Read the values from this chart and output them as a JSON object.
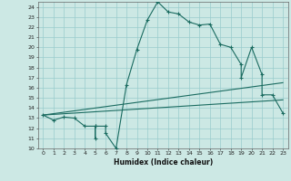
{
  "xlabel": "Humidex (Indice chaleur)",
  "xlim": [
    -0.5,
    23.5
  ],
  "ylim": [
    10,
    24.5
  ],
  "yticks": [
    10,
    11,
    12,
    13,
    14,
    15,
    16,
    17,
    18,
    19,
    20,
    21,
    22,
    23,
    24
  ],
  "xticks": [
    0,
    1,
    2,
    3,
    4,
    5,
    6,
    7,
    8,
    9,
    10,
    11,
    12,
    13,
    14,
    15,
    16,
    17,
    18,
    19,
    20,
    21,
    22,
    23
  ],
  "bg_color": "#cce8e4",
  "grid_color": "#99cccc",
  "line_color": "#1a6b60",
  "curve1_x": [
    0,
    1,
    2,
    3,
    4,
    5,
    5,
    5,
    6,
    6,
    7,
    8,
    9,
    10,
    11,
    12,
    13,
    14,
    15,
    16,
    17,
    18,
    19,
    19,
    20,
    21,
    21,
    22,
    23
  ],
  "curve1_y": [
    13.3,
    12.8,
    13.1,
    13.0,
    12.2,
    12.2,
    11.0,
    12.2,
    12.2,
    11.5,
    10.0,
    16.3,
    19.8,
    22.7,
    24.5,
    23.5,
    23.3,
    22.5,
    22.2,
    22.3,
    20.3,
    20.0,
    18.3,
    17.0,
    20.0,
    17.3,
    15.3,
    15.3,
    13.5
  ],
  "curve2_x": [
    0,
    23
  ],
  "curve2_y": [
    13.3,
    16.5
  ],
  "curve3_x": [
    0,
    23
  ],
  "curve3_y": [
    13.3,
    14.8
  ]
}
